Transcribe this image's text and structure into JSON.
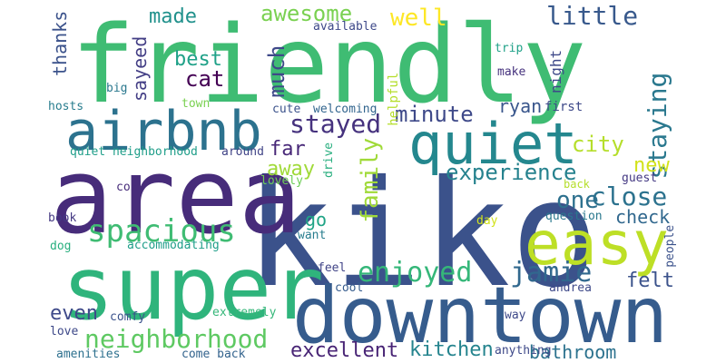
{
  "words": [
    {
      "text": "friendly",
      "color": "#3fbc73"
    },
    {
      "text": "kiko",
      "color": "#3b528b"
    },
    {
      "text": "area",
      "color": "#472c7a"
    },
    {
      "text": "super",
      "color": "#2fb47c"
    },
    {
      "text": "downtown",
      "color": "#365c8d"
    },
    {
      "text": "quiet",
      "color": "#24878e"
    },
    {
      "text": "airbnb",
      "color": "#2c728e"
    },
    {
      "text": "easy",
      "color": "#bddf26"
    },
    {
      "text": "spacious",
      "color": "#3fbc73"
    },
    {
      "text": "neighborhood",
      "color": "#5ec962"
    },
    {
      "text": "enjoyed",
      "color": "#35b779"
    },
    {
      "text": "jamie",
      "color": "#31688e"
    },
    {
      "text": "close",
      "color": "#2c728e"
    },
    {
      "text": "staying",
      "color": "#2a788e"
    },
    {
      "text": "stayed",
      "color": "#46327e"
    },
    {
      "text": "experience",
      "color": "#26828e"
    },
    {
      "text": "minute",
      "color": "#3e4989"
    },
    {
      "text": "family",
      "color": "#a0da39"
    },
    {
      "text": "one",
      "color": "#2d708e"
    },
    {
      "text": "city",
      "color": "#b5de2b"
    },
    {
      "text": "new",
      "color": "#d2e21b"
    },
    {
      "text": "check",
      "color": "#31688e"
    },
    {
      "text": "felt",
      "color": "#3b528b"
    },
    {
      "text": "kitchen",
      "color": "#25848e"
    },
    {
      "text": "bathroom",
      "color": "#2c728e"
    },
    {
      "text": "excellent",
      "color": "#482475"
    },
    {
      "text": "even",
      "color": "#3e4989"
    },
    {
      "text": "awesome",
      "color": "#7ad151"
    },
    {
      "text": "well",
      "color": "#fde725"
    },
    {
      "text": "little",
      "color": "#38598c"
    },
    {
      "text": "made",
      "color": "#21918c"
    },
    {
      "text": "best",
      "color": "#1fa188"
    },
    {
      "text": "cat",
      "color": "#440154"
    },
    {
      "text": "much",
      "color": "#3e4989"
    },
    {
      "text": "thanks",
      "color": "#3b528b"
    },
    {
      "text": "sayeed",
      "color": "#433e85"
    },
    {
      "text": "far",
      "color": "#482878"
    },
    {
      "text": "away",
      "color": "#a0da39"
    },
    {
      "text": "go",
      "color": "#20a486"
    },
    {
      "text": "ryan",
      "color": "#39568c"
    },
    {
      "text": "night",
      "color": "#3e4989"
    },
    {
      "text": "first",
      "color": "#3e4989"
    },
    {
      "text": "available",
      "color": "#3e4989"
    },
    {
      "text": "trip",
      "color": "#1fa188"
    },
    {
      "text": "make",
      "color": "#46327e"
    },
    {
      "text": "helpful",
      "color": "#b5de2b"
    },
    {
      "text": "big",
      "color": "#2a788e"
    },
    {
      "text": "hosts",
      "color": "#287d8e"
    },
    {
      "text": "town",
      "color": "#7ad151"
    },
    {
      "text": "cute",
      "color": "#3b528b"
    },
    {
      "text": "welcoming",
      "color": "#32658e"
    },
    {
      "text": "quiet neighborhood",
      "color": "#1f9e89"
    },
    {
      "text": "around",
      "color": "#414487"
    },
    {
      "text": "drive",
      "color": "#29af7f"
    },
    {
      "text": "lovely",
      "color": "#6ece58"
    },
    {
      "text": "guest",
      "color": "#443983"
    },
    {
      "text": "back",
      "color": "#b5de2b"
    },
    {
      "text": "cozy",
      "color": "#472c7a"
    },
    {
      "text": "question",
      "color": "#2a788e"
    },
    {
      "text": "book",
      "color": "#443983"
    },
    {
      "text": "want",
      "color": "#287d8e"
    },
    {
      "text": "day",
      "color": "#d2e21b"
    },
    {
      "text": "dog",
      "color": "#29af7f"
    },
    {
      "text": "accommodating",
      "color": "#1f9e89"
    },
    {
      "text": "people",
      "color": "#3b528b"
    },
    {
      "text": "feel",
      "color": "#414487"
    },
    {
      "text": "cool",
      "color": "#365c8d"
    },
    {
      "text": "andrea",
      "color": "#3e4989"
    },
    {
      "text": "comfy",
      "color": "#3b528b"
    },
    {
      "text": "extremely",
      "color": "#35b779"
    },
    {
      "text": "way",
      "color": "#3e4989"
    },
    {
      "text": "love",
      "color": "#3e4989"
    },
    {
      "text": "anything",
      "color": "#3e4989"
    },
    {
      "text": "amenities",
      "color": "#2d708e"
    },
    {
      "text": "come back",
      "color": "#33638d"
    }
  ]
}
